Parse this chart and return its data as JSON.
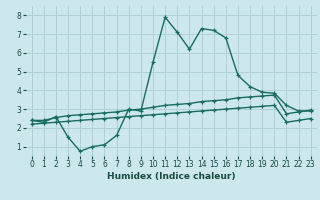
{
  "xlabel": "Humidex (Indice chaleur)",
  "bg_color": "#cce8ec",
  "grid_color": "#b0d0d8",
  "line_color": "#1a6b60",
  "xlim": [
    -0.5,
    23.5
  ],
  "ylim": [
    0.5,
    8.5
  ],
  "xticks": [
    0,
    1,
    2,
    3,
    4,
    5,
    6,
    7,
    8,
    9,
    10,
    11,
    12,
    13,
    14,
    15,
    16,
    17,
    18,
    19,
    20,
    21,
    22,
    23
  ],
  "yticks": [
    1,
    2,
    3,
    4,
    5,
    6,
    7,
    8
  ],
  "series1_x": [
    0,
    1,
    2,
    3,
    4,
    5,
    6,
    7,
    8,
    9,
    10,
    11,
    12,
    13,
    14,
    15,
    16,
    17,
    18,
    19,
    20,
    21,
    22,
    23
  ],
  "series1_y": [
    2.4,
    2.3,
    2.6,
    1.5,
    0.75,
    1.0,
    1.1,
    1.6,
    3.0,
    2.9,
    5.5,
    7.9,
    7.1,
    6.2,
    7.3,
    7.2,
    6.8,
    4.8,
    4.2,
    3.9,
    3.85,
    3.2,
    2.9,
    2.9
  ],
  "series2_x": [
    0,
    1,
    2,
    3,
    4,
    5,
    6,
    7,
    8,
    9,
    10,
    11,
    12,
    13,
    14,
    15,
    16,
    17,
    18,
    19,
    20,
    21,
    22,
    23
  ],
  "series2_y": [
    2.4,
    2.4,
    2.55,
    2.65,
    2.7,
    2.75,
    2.8,
    2.85,
    2.95,
    3.0,
    3.1,
    3.2,
    3.25,
    3.3,
    3.4,
    3.45,
    3.5,
    3.6,
    3.65,
    3.7,
    3.75,
    2.75,
    2.85,
    2.95
  ],
  "series3_x": [
    0,
    1,
    2,
    3,
    4,
    5,
    6,
    7,
    8,
    9,
    10,
    11,
    12,
    13,
    14,
    15,
    16,
    17,
    18,
    19,
    20,
    21,
    22,
    23
  ],
  "series3_y": [
    2.2,
    2.25,
    2.3,
    2.35,
    2.4,
    2.45,
    2.5,
    2.55,
    2.6,
    2.65,
    2.7,
    2.75,
    2.8,
    2.85,
    2.9,
    2.95,
    3.0,
    3.05,
    3.1,
    3.15,
    3.2,
    2.3,
    2.4,
    2.5
  ]
}
